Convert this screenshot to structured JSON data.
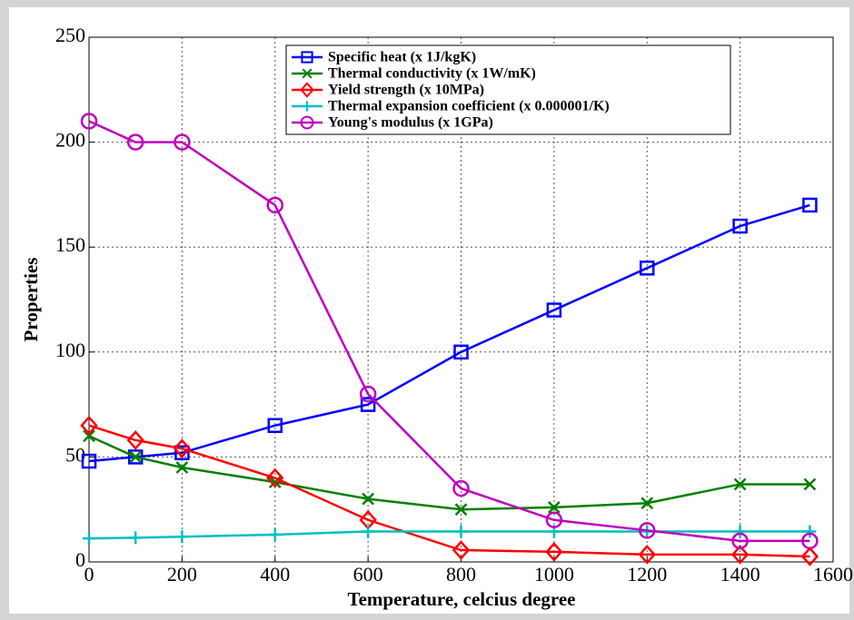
{
  "chart_data": {
    "type": "line",
    "xlabel": "Temperature, celcius degree",
    "ylabel": "Properties",
    "x": [
      0,
      100,
      200,
      400,
      600,
      800,
      1000,
      1200,
      1400,
      1550
    ],
    "series": [
      {
        "name": "Specific heat (x 1J/kgK)",
        "color": "#0000ff",
        "marker": "square",
        "values": [
          48,
          50,
          52,
          65,
          75,
          100,
          120,
          140,
          160,
          170
        ]
      },
      {
        "name": "Thermal conductivity (x 1W/mK)",
        "color": "#008000",
        "marker": "x",
        "values": [
          60,
          50,
          45,
          38,
          30,
          25,
          26,
          28,
          37,
          37
        ]
      },
      {
        "name": "Yield strength (x 10MPa)",
        "color": "#ff0000",
        "marker": "diamond",
        "values": [
          65,
          58,
          54,
          40,
          20,
          5.6,
          4.8,
          3.5,
          3.5,
          2.6
        ]
      },
      {
        "name": "Thermal expansion coefficient (x 0.000001/K)",
        "color": "#00bfbf",
        "marker": "plus",
        "values": [
          11.2,
          11.5,
          12,
          13,
          14.5,
          14.5,
          14.5,
          14.5,
          14.5,
          14.5
        ]
      },
      {
        "name": "Young's modulus (x 1GPa)",
        "color": "#bf00bf",
        "marker": "circle",
        "values": [
          210,
          200,
          200,
          170,
          80,
          35,
          20,
          15,
          10,
          10
        ]
      }
    ],
    "xlim": [
      0,
      1600
    ],
    "xticks": [
      0,
      200,
      400,
      600,
      800,
      1000,
      1200,
      1400,
      1600
    ],
    "ylim": [
      0,
      250
    ],
    "yticks": [
      0,
      50,
      100,
      150,
      200,
      250
    ],
    "grid": true,
    "legend": "north"
  }
}
